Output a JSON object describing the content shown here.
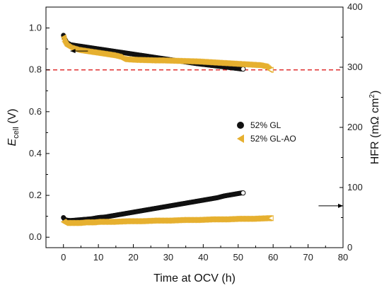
{
  "chart_data": {
    "type": "scatter",
    "xlabel": "Time at OCV (h)",
    "ylabel_left": {
      "main": "E",
      "sub": "cell",
      "unit": " (V)"
    },
    "ylabel_right": {
      "main": "HFR (mΩ cm",
      "sup": "2",
      "end": ")"
    },
    "xlim": [
      -5,
      80
    ],
    "ylim_left": [
      -0.05,
      1.1
    ],
    "ylim_right": [
      0,
      400
    ],
    "x_ticks": [
      0,
      10,
      20,
      30,
      40,
      50,
      60,
      70,
      80
    ],
    "y_left_ticks": [
      "0.0",
      "0.2",
      "0.4",
      "0.6",
      "0.8",
      "1.0"
    ],
    "y_right_ticks": [
      "0",
      "100",
      "200",
      "300",
      "400"
    ],
    "reference_line": {
      "axis": "left",
      "y": 0.8,
      "color": "#e03030"
    },
    "arrows": [
      {
        "points_to": "left",
        "x": [
          7,
          2
        ],
        "y_left": 0.89
      },
      {
        "points_to": "right",
        "x": [
          73,
          80
        ],
        "y_left": 0.15
      }
    ],
    "legend": {
      "position": "center-right"
    },
    "series": [
      {
        "name": "52% GL",
        "axis": "left",
        "color": "#111111",
        "marker": "circle",
        "x": [
          0,
          0.3,
          1,
          2,
          4,
          6,
          8,
          10,
          12,
          14,
          16,
          18,
          20,
          22,
          24,
          26,
          28,
          30,
          32,
          34,
          36,
          38,
          40,
          42,
          44,
          46,
          48,
          50,
          51
        ],
        "y": [
          0.965,
          0.95,
          0.93,
          0.92,
          0.915,
          0.91,
          0.905,
          0.9,
          0.895,
          0.89,
          0.885,
          0.88,
          0.875,
          0.87,
          0.865,
          0.86,
          0.855,
          0.85,
          0.845,
          0.84,
          0.835,
          0.83,
          0.826,
          0.822,
          0.818,
          0.814,
          0.81,
          0.806,
          0.804
        ]
      },
      {
        "name": "52% GL-AO",
        "axis": "left",
        "color": "#e6b030",
        "marker": "triangle-left",
        "x": [
          0,
          0.3,
          1,
          2,
          4,
          6,
          8,
          10,
          12,
          14,
          16,
          17,
          18,
          20,
          22,
          24,
          26,
          28,
          30,
          32,
          34,
          36,
          38,
          40,
          42,
          44,
          46,
          48,
          50,
          52,
          54,
          56,
          58,
          59
        ],
        "y": [
          0.955,
          0.935,
          0.915,
          0.905,
          0.895,
          0.89,
          0.885,
          0.88,
          0.875,
          0.87,
          0.862,
          0.852,
          0.85,
          0.848,
          0.847,
          0.846,
          0.845,
          0.845,
          0.844,
          0.843,
          0.842,
          0.841,
          0.84,
          0.838,
          0.836,
          0.834,
          0.832,
          0.83,
          0.828,
          0.826,
          0.824,
          0.822,
          0.815,
          0.8
        ]
      },
      {
        "name": "52% GL",
        "axis": "right",
        "color": "#111111",
        "marker": "circle",
        "x": [
          0,
          0.5,
          2,
          4,
          6,
          8,
          10,
          12,
          14,
          16,
          18,
          20,
          22,
          24,
          26,
          28,
          30,
          32,
          34,
          36,
          38,
          40,
          42,
          44,
          46,
          48,
          50,
          51
        ],
        "y": [
          50,
          46,
          45,
          46,
          47,
          48,
          50,
          51,
          53,
          55,
          57,
          59,
          61,
          63,
          65,
          67,
          69,
          71,
          73,
          75,
          77,
          79,
          81,
          83,
          86,
          88,
          90,
          91
        ]
      },
      {
        "name": "52% GL-AO",
        "axis": "right",
        "color": "#e6b030",
        "marker": "triangle-left",
        "x": [
          0,
          0.5,
          2,
          4,
          6,
          8,
          10,
          14,
          18,
          22,
          26,
          30,
          34,
          38,
          42,
          46,
          50,
          54,
          58,
          59
        ],
        "y": [
          43,
          41,
          41,
          41,
          42,
          42,
          43,
          43,
          44,
          44,
          45,
          45,
          46,
          46,
          47,
          47,
          48,
          48,
          49,
          49
        ]
      }
    ]
  }
}
